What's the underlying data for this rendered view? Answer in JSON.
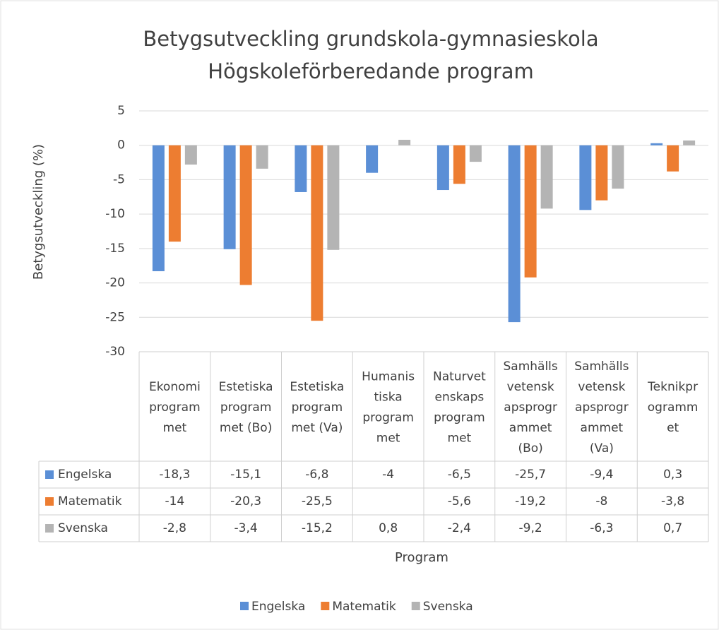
{
  "chart_data": {
    "type": "bar",
    "title": "Betygsutveckling grundskola-gymnasieskola",
    "subtitle": "Högskoleförberedande program",
    "y_label": "Betygsutveckling (%)",
    "x_label": "Program",
    "categories": [
      [
        "Ekonomi",
        "program",
        "met"
      ],
      [
        "Estetiska",
        "program",
        "met (Bo)"
      ],
      [
        "Estetiska",
        "program",
        "met (Va)"
      ],
      [
        "Humanis",
        "tiska",
        "program",
        "met"
      ],
      [
        "Naturvet",
        "enskaps",
        "program",
        "met"
      ],
      [
        "Samhälls",
        "vetensk",
        "apsprogr",
        "ammet",
        "(Bo)"
      ],
      [
        "Samhälls",
        "vetensk",
        "apsprogr",
        "ammet",
        "(Va)"
      ],
      [
        "Teknikpr",
        "ogramm",
        "et"
      ]
    ],
    "series": [
      {
        "name": "Engelska",
        "color": "#5b8fd6",
        "values": [
          -18.3,
          -15.1,
          -6.8,
          -4,
          -6.5,
          -25.7,
          -9.4,
          0.3
        ],
        "value_labels": [
          "-18,3",
          "-15,1",
          "-6,8",
          "-4",
          "-6,5",
          "-25,7",
          "-9,4",
          "0,3"
        ]
      },
      {
        "name": "Matematik",
        "color": "#ed7d31",
        "values": [
          -14,
          -20.3,
          -25.5,
          null,
          -5.6,
          -19.2,
          -8,
          -3.8
        ],
        "value_labels": [
          "-14",
          "-20,3",
          "-25,5",
          null,
          "-5,6",
          "-19,2",
          "-8",
          "-3,8"
        ]
      },
      {
        "name": "Svenska",
        "color": "#b4b4b4",
        "values": [
          -2.8,
          -3.4,
          -15.2,
          0.8,
          -2.4,
          -9.2,
          -6.3,
          0.7
        ],
        "value_labels": [
          "-2,8",
          "-3,4",
          "-15,2",
          "0,8",
          "-2,4",
          "-9,2",
          "-6,3",
          "0,7"
        ]
      }
    ],
    "ylim": [
      -30,
      5
    ],
    "yticks": [
      5,
      0,
      -5,
      -10,
      -15,
      -20,
      -25,
      -30
    ],
    "grid": true,
    "legend": "bottom"
  }
}
